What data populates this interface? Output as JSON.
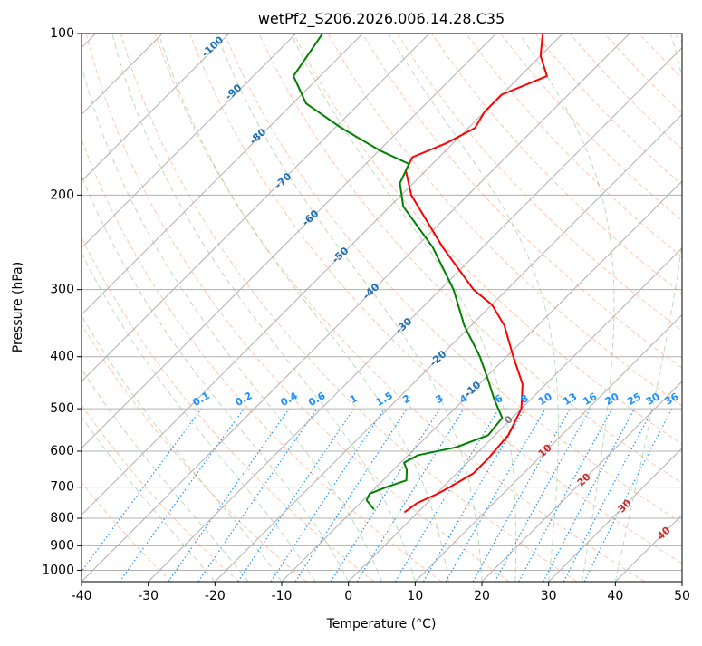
{
  "chart_data": {
    "type": "line",
    "subtype": "skew-t log-p sounding",
    "title": "wetPf2_S206.2026.006.14.28.C35",
    "xlabel": "Temperature (°C)",
    "ylabel": "Pressure (hPa)",
    "xlim": [
      -40,
      50
    ],
    "ylim": [
      1050,
      100
    ],
    "grid": true,
    "x_ticks": [
      "-40",
      "-30",
      "-20",
      "-10",
      "0",
      "10",
      "20",
      "30",
      "40",
      "50"
    ],
    "y_ticks": [
      "100",
      "200",
      "300",
      "400",
      "500",
      "600",
      "700",
      "800",
      "900",
      "1000"
    ],
    "series": [
      {
        "name": "Temperature",
        "color": "#ff0000",
        "points": [
          {
            "p": 780,
            "t": -2.0
          },
          {
            "p": 750,
            "t": -1.5
          },
          {
            "p": 720,
            "t": 0.2
          },
          {
            "p": 700,
            "t": 1.0
          },
          {
            "p": 660,
            "t": 2.5
          },
          {
            "p": 620,
            "t": 2.5
          },
          {
            "p": 560,
            "t": 2.0
          },
          {
            "p": 500,
            "t": 0.0
          },
          {
            "p": 450,
            "t": -3.5
          },
          {
            "p": 400,
            "t": -9.0
          },
          {
            "p": 350,
            "t": -15.0
          },
          {
            "p": 320,
            "t": -20.0
          },
          {
            "p": 300,
            "t": -25.0
          },
          {
            "p": 250,
            "t": -36.0
          },
          {
            "p": 200,
            "t": -48.5
          },
          {
            "p": 180,
            "t": -53.0
          },
          {
            "p": 170,
            "t": -54.0
          },
          {
            "p": 160,
            "t": -51.0
          },
          {
            "p": 150,
            "t": -49.0
          },
          {
            "p": 140,
            "t": -50.0
          },
          {
            "p": 130,
            "t": -50.0
          },
          {
            "p": 120,
            "t": -46.0
          },
          {
            "p": 110,
            "t": -50.0
          },
          {
            "p": 100,
            "t": -53.0
          }
        ]
      },
      {
        "name": "Dewpoint",
        "color": "#008000",
        "points": [
          {
            "p": 770,
            "t": -7.0
          },
          {
            "p": 740,
            "t": -9.5
          },
          {
            "p": 720,
            "t": -10.0
          },
          {
            "p": 700,
            "t": -8.5
          },
          {
            "p": 680,
            "t": -6.5
          },
          {
            "p": 650,
            "t": -8.0
          },
          {
            "p": 630,
            "t": -9.5
          },
          {
            "p": 610,
            "t": -8.5
          },
          {
            "p": 590,
            "t": -4.0
          },
          {
            "p": 560,
            "t": -1.0
          },
          {
            "p": 520,
            "t": -1.5
          },
          {
            "p": 480,
            "t": -5.5
          },
          {
            "p": 440,
            "t": -9.5
          },
          {
            "p": 400,
            "t": -14.0
          },
          {
            "p": 350,
            "t": -21.0
          },
          {
            "p": 300,
            "t": -28.0
          },
          {
            "p": 250,
            "t": -37.5
          },
          {
            "p": 210,
            "t": -48.0
          },
          {
            "p": 190,
            "t": -52.0
          },
          {
            "p": 175,
            "t": -53.5
          },
          {
            "p": 165,
            "t": -60.0
          },
          {
            "p": 150,
            "t": -69.0
          },
          {
            "p": 135,
            "t": -78.0
          },
          {
            "p": 120,
            "t": -84.0
          },
          {
            "p": 100,
            "t": -86.0
          }
        ]
      }
    ],
    "isotherm_labels": [
      "-100",
      "-90",
      "-80",
      "-70",
      "-60",
      "-50",
      "-40",
      "-30",
      "-20",
      "-10",
      "0",
      "10",
      "20",
      "30",
      "40"
    ],
    "mixing_ratio_labels": [
      "0.1",
      "0.2",
      "0.4",
      "0.6",
      "1",
      "1.5",
      "2",
      "3",
      "4",
      "6",
      "8",
      "10",
      "13",
      "16",
      "20",
      "25",
      "30",
      "36"
    ]
  },
  "colors": {
    "temperature": "#ff0000",
    "dewpoint": "#008000",
    "isotherm_label": "#1f6fb4",
    "isotherm_label_warm": "#d62728",
    "isotherm_label_zero": "#808080",
    "mixing_ratio": "#1e90ff",
    "dry_adiabat": "#ff9966",
    "moist_adiabat": "#66b366",
    "grid": "#b0b0b0"
  }
}
